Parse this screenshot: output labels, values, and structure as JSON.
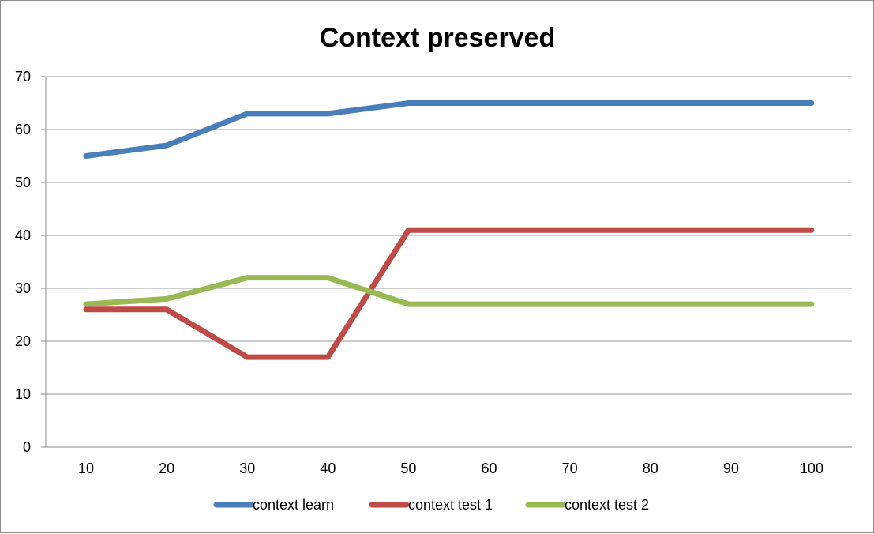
{
  "chart_data": {
    "type": "line",
    "title": "Context preserved",
    "xlabel": "",
    "ylabel": "",
    "x": [
      10,
      20,
      30,
      40,
      50,
      60,
      70,
      80,
      90,
      100
    ],
    "ylim": [
      0,
      70
    ],
    "yticks": [
      0,
      10,
      20,
      30,
      40,
      50,
      60,
      70
    ],
    "grid": true,
    "legend_position": "bottom",
    "series": [
      {
        "name": "context learn",
        "color": "#4a7ebb",
        "values": [
          55,
          57,
          63,
          63,
          65,
          65,
          65,
          65,
          65,
          65
        ]
      },
      {
        "name": "context test 1",
        "color": "#be4b48",
        "values": [
          26,
          26,
          17,
          17,
          41,
          41,
          41,
          41,
          41,
          41
        ]
      },
      {
        "name": "context test 2",
        "color": "#98b954",
        "values": [
          27,
          28,
          32,
          32,
          27,
          27,
          27,
          27,
          27,
          27
        ]
      }
    ]
  }
}
